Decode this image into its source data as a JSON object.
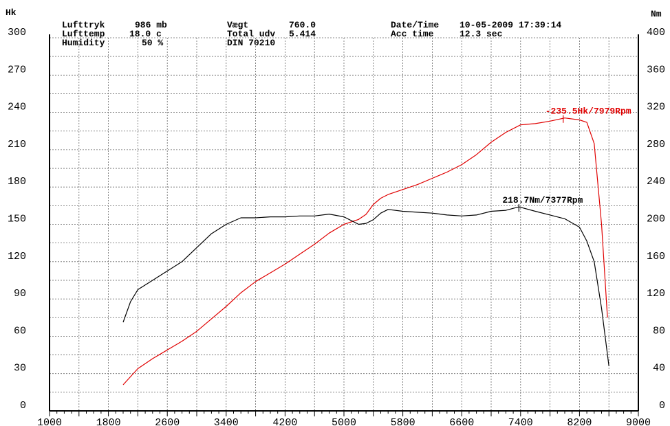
{
  "header": {
    "lufttryk_label": "Lufttryk",
    "lufttryk_value": "986 mb",
    "lufttemp_label": "Lufttemp",
    "lufttemp_value": "18.0 c",
    "humidity_label": "Humidity",
    "humidity_value": "50 %",
    "vaegt_label": "Vægt",
    "vaegt_value": "760.0",
    "total_udv_label": "Total udv",
    "total_udv_value": "5.414",
    "din": "DIN 70210",
    "datetime_label": "Date/Time",
    "datetime_value": "10-05-2009 17:39:14",
    "acctime_label": "Acc time",
    "acctime_value": "12.3 sec"
  },
  "chart_data": {
    "type": "line",
    "title": "",
    "xlabel": "",
    "ylabel_left": "Hk",
    "ylabel_right": "Nm",
    "xlim": [
      1000,
      9000
    ],
    "ylim_left": [
      0,
      300
    ],
    "ylim_right": [
      0,
      400
    ],
    "x_ticks": [
      "1000",
      "1800",
      "2600",
      "3400",
      "4200",
      "5000",
      "5800",
      "6600",
      "7400",
      "8200",
      "9000"
    ],
    "y_ticks_left": [
      "0",
      "30",
      "60",
      "90",
      "120",
      "150",
      "180",
      "210",
      "240",
      "270",
      "300"
    ],
    "y_ticks_right": [
      "0",
      "40",
      "80",
      "120",
      "160",
      "200",
      "240",
      "280",
      "320",
      "360",
      "400"
    ],
    "grid": true,
    "series": [
      {
        "name": "Hk",
        "axis": "left",
        "color": "#e00000",
        "x": [
          2000,
          2200,
          2400,
          2600,
          2800,
          3000,
          3200,
          3400,
          3600,
          3800,
          4000,
          4200,
          4400,
          4600,
          4800,
          5000,
          5200,
          5300,
          5400,
          5500,
          5600,
          5800,
          6000,
          6200,
          6400,
          6600,
          6800,
          7000,
          7200,
          7400,
          7600,
          7800,
          8000,
          8200,
          8300,
          8400,
          8500,
          8580
        ],
        "values": [
          21,
          34,
          42,
          49,
          56,
          64,
          74,
          84,
          95,
          104,
          111,
          118,
          126,
          134,
          143,
          150,
          154,
          158,
          166,
          171,
          174,
          178,
          182,
          187,
          192,
          198,
          206,
          216,
          224,
          230,
          231,
          233,
          235.5,
          234,
          232,
          215,
          150,
          75
        ]
      },
      {
        "name": "Nm",
        "axis": "right",
        "color": "#000000",
        "x": [
          2000,
          2100,
          2200,
          2400,
          2600,
          2800,
          3000,
          3200,
          3400,
          3600,
          3800,
          4000,
          4200,
          4400,
          4600,
          4800,
          5000,
          5200,
          5300,
          5400,
          5500,
          5600,
          5800,
          6000,
          6200,
          6400,
          6600,
          6800,
          7000,
          7200,
          7377,
          7600,
          7800,
          8000,
          8200,
          8300,
          8400,
          8500,
          8600
        ],
        "values": [
          95,
          117,
          130,
          140,
          150,
          160,
          175,
          190,
          200,
          207,
          207,
          208,
          208,
          209,
          209,
          211,
          208,
          200,
          201,
          205,
          212,
          216,
          214,
          213,
          212,
          210,
          209,
          210,
          214,
          215,
          218.7,
          214,
          210,
          206,
          197,
          182,
          160,
          110,
          48
        ]
      }
    ],
    "annotations": [
      {
        "text": "235.5Hk/7979Rpm",
        "x": 7979,
        "y": 235.5,
        "color": "#e00000"
      },
      {
        "text": "218.7Nm/7377Rpm",
        "x": 7377,
        "y": 218.7,
        "color": "#000000"
      }
    ]
  }
}
